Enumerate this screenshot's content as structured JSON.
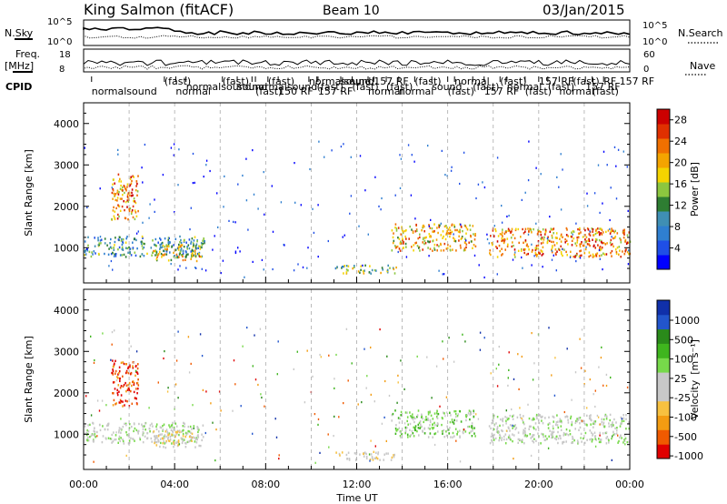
{
  "header": {
    "station": "King Salmon (fitACF)",
    "beam": "Beam 10",
    "date": "03/Jan/2015"
  },
  "colors": {
    "power_scale": [
      "#0000ff",
      "#1f4fe6",
      "#2f7fd0",
      "#3f8fb4",
      "#2e7d32",
      "#8cc63f",
      "#f4d400",
      "#f4a400",
      "#f07000",
      "#e03000",
      "#cc0000"
    ],
    "velocity_scale": [
      "#e00000",
      "#f05a00",
      "#f39c12",
      "#f7c140",
      "#c8c8c8",
      "#c8c8c8",
      "#77d94a",
      "#3fb51e",
      "#2a8a1a",
      "#2255cc",
      "#1030aa"
    ],
    "grid": "#aaaaaa"
  },
  "panels": {
    "nsky_label": "N.Sky",
    "nsearch_label": "N.Search",
    "freq_label_1": "Freq.",
    "freq_label_2": "[MHz]",
    "nave_label": "Nave",
    "cpid_label": "CPID",
    "nsky_ticks": [
      "10^5",
      "10^0"
    ],
    "nsearch_ticks": [
      "10^5",
      "10^0"
    ],
    "freq_ticks": [
      "18",
      "8"
    ],
    "nave_ticks": [
      "60",
      "0"
    ]
  },
  "cpid_modes": [
    {
      "text": "normalsound",
      "t": 0.35
    },
    {
      "text": "(fast)",
      "t": 3.55
    },
    {
      "text": "normalsound",
      "t": 4.5
    },
    {
      "text": "normal",
      "t": 4.05
    },
    {
      "text": "(fast)",
      "t": 6.1
    },
    {
      "text": "sound",
      "t": 6.75
    },
    {
      "text": "(fast)",
      "t": 7.55
    },
    {
      "text": "(fast)",
      "t": 8.1
    },
    {
      "text": "normalsound",
      "t": 7.4
    },
    {
      "text": "150 RF",
      "t": 8.55
    },
    {
      "text": "normalsound",
      "t": 9.9
    },
    {
      "text": "(fast)",
      "t": 10.25
    },
    {
      "text": "157 RF",
      "t": 10.3
    },
    {
      "text": "sound",
      "t": 11.3
    },
    {
      "text": "(fast)",
      "t": 11.8
    },
    {
      "text": "normal",
      "t": 12.5
    },
    {
      "text": "157 RF",
      "t": 12.75
    },
    {
      "text": "(fast)",
      "t": 13.3
    },
    {
      "text": "normal",
      "t": 13.85
    },
    {
      "text": "(fast)",
      "t": 14.55
    },
    {
      "text": "sound",
      "t": 15.3
    },
    {
      "text": "(fast)",
      "t": 16.0
    },
    {
      "text": "normal",
      "t": 16.3
    },
    {
      "text": "(fast)",
      "t": 17.1
    },
    {
      "text": "157 RF",
      "t": 17.6
    },
    {
      "text": "(fast)",
      "t": 18.3
    },
    {
      "text": "normal",
      "t": 18.6
    },
    {
      "text": "(fast)",
      "t": 19.4
    },
    {
      "text": "157 RF",
      "t": 20.0
    },
    {
      "text": "(fast)",
      "t": 20.4
    },
    {
      "text": "normal",
      "t": 20.9
    },
    {
      "text": "(fast)",
      "t": 21.5
    },
    {
      "text": "157 RF",
      "t": 22.05
    },
    {
      "text": "(fast)",
      "t": 22.35
    },
    {
      "text": "RF 157 RF",
      "t": 22.85
    }
  ],
  "chart_data": [
    {
      "type": "heatmap",
      "ylabel": "Slant Range [km]",
      "xlabel": "",
      "colorbar_label": "Power [dB]",
      "x_range": [
        0,
        24
      ],
      "ylim": [
        150,
        4500
      ],
      "yticks": [
        1000,
        2000,
        3000,
        4000
      ],
      "colorbar_ticks": [
        4,
        8,
        12,
        16,
        20,
        24,
        28
      ],
      "colorbar_range": [
        0,
        30
      ],
      "features": [
        {
          "t_range": [
            0,
            5.3
          ],
          "range_km": [
            800,
            1300
          ],
          "value": 10
        },
        {
          "t_range": [
            1.2,
            2.4
          ],
          "range_km": [
            1700,
            2800
          ],
          "value": 22
        },
        {
          "t_range": [
            3.0,
            5.2
          ],
          "range_km": [
            700,
            1100
          ],
          "value": 18
        },
        {
          "t_range": [
            11.0,
            13.8
          ],
          "range_km": [
            400,
            600
          ],
          "value": 14
        },
        {
          "t_range": [
            13.5,
            17.2
          ],
          "range_km": [
            950,
            1600
          ],
          "value": 20
        },
        {
          "t_range": [
            17.8,
            24.0
          ],
          "range_km": [
            800,
            1500
          ],
          "value": 22
        }
      ]
    },
    {
      "type": "heatmap",
      "ylabel": "Slant Range [km]",
      "xlabel": "Time UT",
      "colorbar_label": "Velocity",
      "colorbar_units": "[m s⁻¹]",
      "x_range": [
        0,
        24
      ],
      "xticks": [
        "00:00",
        "04:00",
        "08:00",
        "12:00",
        "16:00",
        "20:00",
        "00:00"
      ],
      "ylim": [
        150,
        4500
      ],
      "yticks": [
        1000,
        2000,
        3000,
        4000
      ],
      "colorbar_ticks": [
        "1000",
        "500",
        "100",
        "25",
        "-25",
        "-100",
        "-500",
        "-1000"
      ],
      "colorbar_range": [
        -1000,
        1000
      ],
      "features": [
        {
          "t_range": [
            0,
            5.3
          ],
          "range_km": [
            800,
            1300
          ],
          "value": 0
        },
        {
          "t_range": [
            1.2,
            2.4
          ],
          "range_km": [
            1700,
            2800
          ],
          "value": -800
        },
        {
          "t_range": [
            3.0,
            5.2
          ],
          "range_km": [
            700,
            1100
          ],
          "value": -200
        },
        {
          "t_range": [
            11.0,
            13.8
          ],
          "range_km": [
            400,
            600
          ],
          "value": -150
        },
        {
          "t_range": [
            13.5,
            17.2
          ],
          "range_km": [
            950,
            1600
          ],
          "value": 150
        },
        {
          "t_range": [
            17.8,
            24.0
          ],
          "range_km": [
            800,
            1500
          ],
          "value": 0
        }
      ]
    }
  ]
}
